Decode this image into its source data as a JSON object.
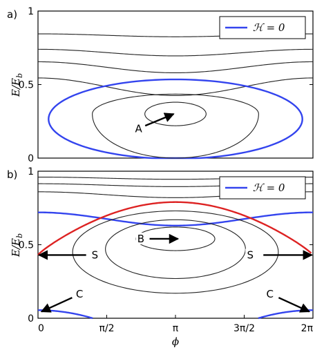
{
  "chart_data": [
    {
      "type": "line",
      "panel_label": "a)",
      "ylabel": "E/E_b",
      "ylabel_parts": {
        "main": "E/E",
        "sub": "b"
      },
      "xlabel": "",
      "xlim": [
        0,
        6.2832
      ],
      "ylim": [
        0,
        1
      ],
      "yticks": [
        {
          "v": 0,
          "label": "0"
        },
        {
          "v": 0.5,
          "label": "0.5"
        },
        {
          "v": 1,
          "label": "1"
        }
      ],
      "xticks": [],
      "legend": {
        "label": "ℋ = 0",
        "color": "#3344ee",
        "position": "top-right"
      },
      "series": [
        {
          "kind": "flat",
          "color": "#222222",
          "values": [
            {
              "level": 0.845,
              "amp": 0.02
            }
          ]
        },
        {
          "kind": "flat",
          "color": "#222222",
          "values": [
            {
              "level": 0.74,
              "amp": 0.045
            }
          ]
        },
        {
          "kind": "flat",
          "color": "#222222",
          "values": [
            {
              "level": 0.655,
              "amp": 0.075
            }
          ]
        },
        {
          "kind": "flat",
          "color": "#222222",
          "values": [
            {
              "level": 0.545,
              "amp": 0.12
            }
          ]
        },
        {
          "kind": "closed",
          "color": "#3344ee",
          "values": [
            {
              "cx": 3.1416,
              "cy": 0.265,
              "rx": 2.9,
              "ry_top": 0.27,
              "ry_bot": 0.27
            }
          ]
        },
        {
          "kind": "closed",
          "color": "#222222",
          "values": [
            {
              "cx": 3.1416,
              "cy": 0.3,
              "rx": 1.9,
              "ry_top": 0.135,
              "ry_bot": 0.3
            }
          ]
        },
        {
          "kind": "closed",
          "color": "#222222",
          "values": [
            {
              "cx": 3.1416,
              "cy": 0.3,
              "rx": 0.7,
              "ry_top": 0.08,
              "ry_bot": 0.08
            }
          ]
        }
      ],
      "annotations": [
        {
          "text": "A",
          "text_x": 2.3,
          "text_y": 0.2,
          "arrow_from": [
            2.45,
            0.22
          ],
          "arrow_to": [
            3.1,
            0.3
          ]
        }
      ]
    },
    {
      "type": "line",
      "panel_label": "b)",
      "ylabel": "E/E_b",
      "ylabel_parts": {
        "main": "E/E",
        "sub": "b"
      },
      "xlabel": "ϕ",
      "xlim": [
        0,
        6.2832
      ],
      "ylim": [
        0,
        1
      ],
      "yticks": [
        {
          "v": 0,
          "label": "0"
        },
        {
          "v": 0.5,
          "label": "0.5"
        },
        {
          "v": 1,
          "label": "1"
        }
      ],
      "xticks": [
        {
          "v": 0,
          "label": "0"
        },
        {
          "v": 1.5708,
          "label": "π/2"
        },
        {
          "v": 3.1416,
          "label": "π"
        },
        {
          "v": 4.7124,
          "label": "3π/2"
        },
        {
          "v": 6.2832,
          "label": "2π"
        }
      ],
      "legend": {
        "label": "ℋ = 0",
        "color": "#3344ee",
        "position": "top-right"
      },
      "series": [
        {
          "kind": "flat",
          "color": "#222222",
          "values": [
            {
              "level": 0.96,
              "amp": 0.015
            }
          ]
        },
        {
          "kind": "flat",
          "color": "#222222",
          "values": [
            {
              "level": 0.915,
              "amp": 0.02
            }
          ]
        },
        {
          "kind": "flat",
          "color": "#222222",
          "values": [
            {
              "level": 0.86,
              "amp": 0.04
            }
          ]
        },
        {
          "kind": "flat",
          "color": "#3344ee",
          "values": [
            {
              "level": 0.72,
              "amp": 0.09
            }
          ]
        },
        {
          "kind": "separatrix",
          "color": "#dd2222",
          "values": [
            {
              "saddle": 0.43,
              "top": 0.79,
              "bottom": 0.09
            }
          ]
        },
        {
          "kind": "closed",
          "color": "#222222",
          "values": [
            {
              "cx": 3.1416,
              "cy": 0.45,
              "rx": 2.35,
              "ry_top": 0.28,
              "ry_bot": 0.28
            }
          ]
        },
        {
          "kind": "closed",
          "color": "#222222",
          "values": [
            {
              "cx": 3.1416,
              "cy": 0.47,
              "rx": 1.6,
              "ry_top": 0.2,
              "ry_bot": 0.2
            }
          ]
        },
        {
          "kind": "closed",
          "color": "#222222",
          "values": [
            {
              "cx": 3.1416,
              "cy": 0.54,
              "rx": 0.9,
              "ry_top": 0.08,
              "ry_bot": 0.08
            }
          ]
        },
        {
          "kind": "bump",
          "color": "#3344ee",
          "values": [
            {
              "center": 0,
              "height": 0.055,
              "halfwidth": 1.25
            },
            {
              "center": 6.2832,
              "height": 0.055,
              "halfwidth": 1.25
            }
          ]
        }
      ],
      "annotations": [
        {
          "text": "B",
          "text_x": 2.35,
          "text_y": 0.54,
          "arrow_from": [
            2.55,
            0.54
          ],
          "arrow_to": [
            3.2,
            0.54
          ]
        },
        {
          "text": "S",
          "text_x": 1.3,
          "text_y": 0.43,
          "arrow_from": [
            1.1,
            0.43
          ],
          "arrow_to": [
            0.02,
            0.43
          ]
        },
        {
          "text": "S",
          "text_x": 4.85,
          "text_y": 0.43,
          "arrow_from": [
            5.15,
            0.43
          ],
          "arrow_to": [
            6.26,
            0.43
          ]
        },
        {
          "text": "C",
          "text_x": 0.95,
          "text_y": 0.165,
          "arrow_from": [
            0.78,
            0.14
          ],
          "arrow_to": [
            0.08,
            0.045
          ]
        },
        {
          "text": "C",
          "text_x": 5.3,
          "text_y": 0.165,
          "arrow_from": [
            5.5,
            0.14
          ],
          "arrow_to": [
            6.2,
            0.045
          ]
        }
      ]
    }
  ]
}
